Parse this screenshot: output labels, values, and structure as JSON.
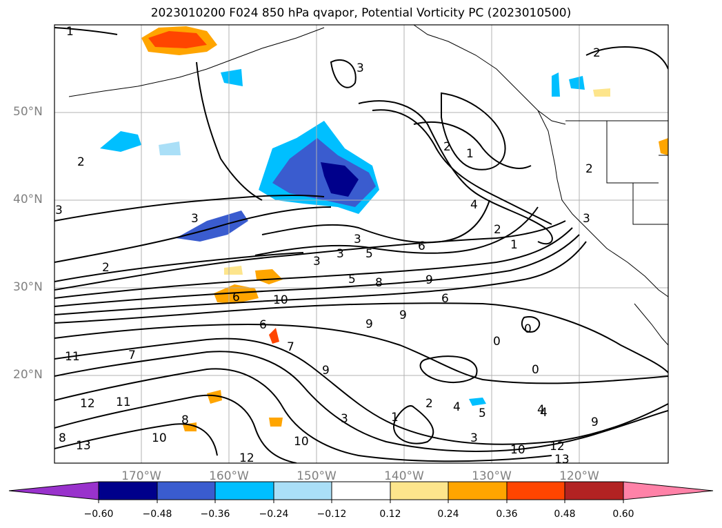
{
  "title": "2023010200 F024 850 hPa qvapor, Potential Vorticity PC (2023010500)",
  "map": {
    "lat_labels": [
      "50°N",
      "40°N",
      "30°N",
      "20°N"
    ],
    "lon_labels": [
      "170°W",
      "160°W",
      "150°W",
      "140°W",
      "130°W",
      "120°W"
    ],
    "gridline_color": "#b0b0b0",
    "contour_labels": [
      "1",
      "2",
      "3",
      "3",
      "2",
      "2",
      "3",
      "3",
      "3",
      "3",
      "5",
      "6",
      "9",
      "8",
      "10",
      "6",
      "5",
      "6",
      "7",
      "9",
      "9",
      "6",
      "0",
      "0",
      "0",
      "4",
      "2",
      "4",
      "1",
      "1",
      "2",
      "3",
      "4",
      "9",
      "10",
      "11",
      "12",
      "13",
      "11",
      "10",
      "12",
      "8",
      "7",
      "8",
      "5",
      "9",
      "10",
      "12",
      "13",
      "3",
      "3",
      "2",
      "1",
      "4",
      "2"
    ]
  },
  "colorbar": {
    "tick_labels": [
      "−0.60",
      "−0.48",
      "−0.36",
      "−0.24",
      "−0.12",
      "0.12",
      "0.24",
      "0.36",
      "0.48",
      "0.60"
    ],
    "colors": [
      "#9932cc",
      "#00008b",
      "#3a5ccf",
      "#00bfff",
      "#aadff7",
      "#ffffff",
      "#fde58c",
      "#ffa500",
      "#ff4500",
      "#b22222",
      "#ff82a8"
    ]
  }
}
